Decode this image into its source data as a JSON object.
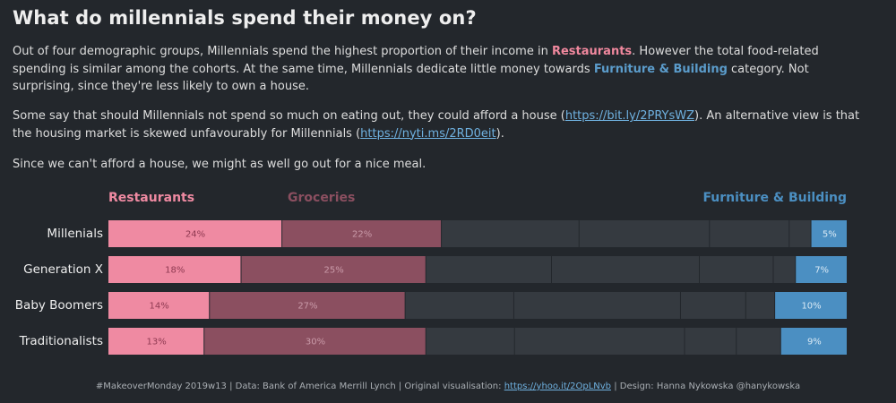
{
  "title": "What do millennials spend their money on?",
  "paragraph1": {
    "t1": "Out of four demographic groups, Millennials spend the highest proportion of their income in ",
    "h1": "Restaurants",
    "t2": ". However the total food-related spending is similar among the cohorts. At the same time, Millennials dedicate little money towards ",
    "h2": "Furniture & Building",
    "t3": " category. Not surprising, since they're less likely to own a house."
  },
  "paragraph2": {
    "t1": "Some say that should Millennials not spend so much on eating out, they could afford a house (",
    "link1": "https://bit.ly/2PRYsWZ",
    "t2": "). An alternative view is that the housing market is skewed unfavourably for Millennials (",
    "link2": "https://nyti.ms/2RD0eit",
    "t3": ")."
  },
  "paragraph3": "Since we can't afford a house, we might as well go out for a nice meal.",
  "colors": {
    "restaurants": "#ef8aa2",
    "groceries": "#8b4f60",
    "other": "#353a40",
    "furniture": "#4b8fc2",
    "background": "#23272c"
  },
  "chart_data": {
    "type": "bar",
    "orientation": "horizontal-stacked-100",
    "legend_labels": [
      "Restaurants",
      "Groceries",
      "Furniture & Building"
    ],
    "categories": [
      "Millenials",
      "Generation X",
      "Baby Boomers",
      "Traditionalists"
    ],
    "series": [
      {
        "name": "Restaurants",
        "values": [
          24,
          18,
          14,
          13
        ],
        "labels": [
          "24%",
          "18%",
          "14%",
          "13%"
        ]
      },
      {
        "name": "Groceries",
        "values": [
          22,
          25,
          27,
          30
        ],
        "labels": [
          "22%",
          "25%",
          "27%",
          "30%"
        ]
      },
      {
        "values": [
          19,
          17,
          15,
          12
        ]
      },
      {
        "values": [
          18,
          20,
          23,
          23
        ]
      },
      {
        "values": [
          11,
          10,
          9,
          7
        ]
      },
      {
        "values": [
          3,
          3,
          4,
          6
        ]
      },
      {
        "name": "Furniture & Building",
        "values": [
          5,
          7,
          10,
          9
        ],
        "labels": [
          "5%",
          "7%",
          "10%",
          "9%"
        ]
      }
    ],
    "xlim": [
      0,
      100
    ]
  },
  "footer": {
    "t1": "#MakeoverMonday 2019w13 | Data: Bank of America Merrill Lynch | Original visualisation: ",
    "link": "https://yhoo.it/2OpLNvb",
    "t2": " | Design: Hanna Nykowska @hanykowska"
  }
}
